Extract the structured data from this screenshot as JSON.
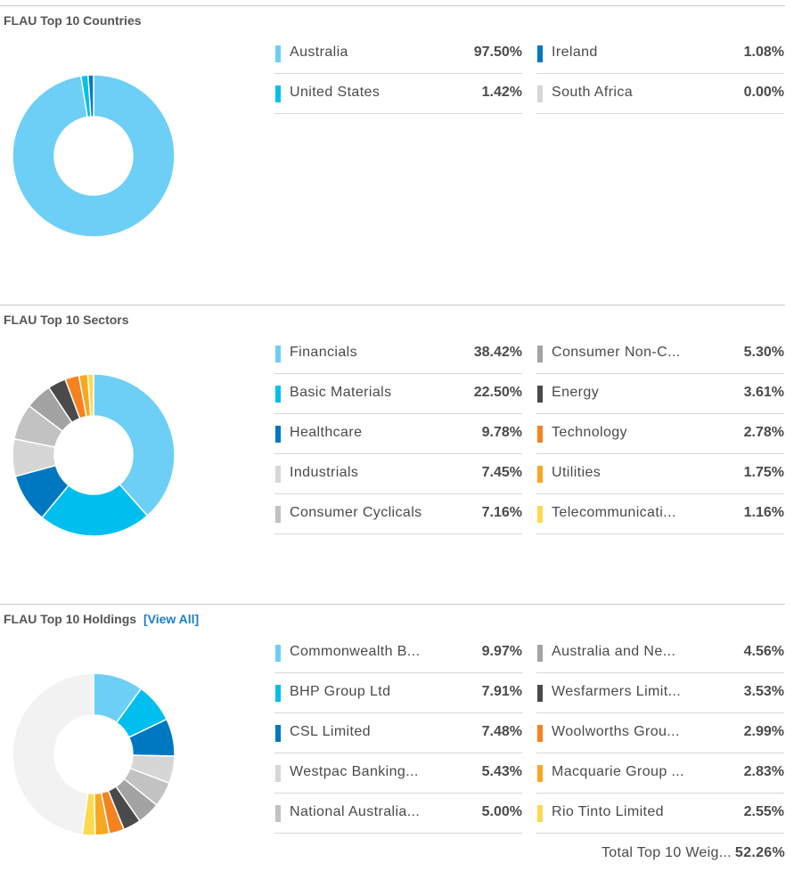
{
  "colors": {
    "c1": "#6dcff6",
    "c2": "#00bfee",
    "c3": "#0078c1",
    "c4": "#d6d6d6",
    "c5": "#c2c2c2",
    "c6": "#a3a3a3",
    "c7": "#4a4a4a",
    "c8": "#f5821f",
    "c9": "#f7a823",
    "c10": "#fdd94f",
    "rest": "#f2f2f2"
  },
  "countries": {
    "title": "FLAU Top 10 Countries",
    "items": [
      {
        "label": "Australia",
        "value": "97.50%",
        "pct": 97.5,
        "color": "#6dcff6"
      },
      {
        "label": "United States",
        "value": "1.42%",
        "pct": 1.42,
        "color": "#00bfee"
      },
      {
        "label": "Ireland",
        "value": "1.08%",
        "pct": 1.08,
        "color": "#0078c1"
      },
      {
        "label": "South Africa",
        "value": "0.00%",
        "pct": 0.0,
        "color": "#d6d6d6"
      }
    ]
  },
  "sectors": {
    "title": "FLAU Top 10 Sectors",
    "items": [
      {
        "label": "Financials",
        "value": "38.42%",
        "pct": 38.42,
        "color": "#6dcff6"
      },
      {
        "label": "Basic Materials",
        "value": "22.50%",
        "pct": 22.5,
        "color": "#00bfee"
      },
      {
        "label": "Healthcare",
        "value": "9.78%",
        "pct": 9.78,
        "color": "#0078c1"
      },
      {
        "label": "Industrials",
        "value": "7.45%",
        "pct": 7.45,
        "color": "#d6d6d6"
      },
      {
        "label": "Consumer Cyclicals",
        "value": "7.16%",
        "pct": 7.16,
        "color": "#c2c2c2"
      },
      {
        "label": "Consumer Non-C...",
        "value": "5.30%",
        "pct": 5.3,
        "color": "#a3a3a3"
      },
      {
        "label": "Energy",
        "value": "3.61%",
        "pct": 3.61,
        "color": "#4a4a4a"
      },
      {
        "label": "Technology",
        "value": "2.78%",
        "pct": 2.78,
        "color": "#f5821f"
      },
      {
        "label": "Utilities",
        "value": "1.75%",
        "pct": 1.75,
        "color": "#f7a823"
      },
      {
        "label": "Telecommunicati...",
        "value": "1.16%",
        "pct": 1.16,
        "color": "#fdd94f"
      }
    ]
  },
  "holdings": {
    "title": "FLAU Top 10 Holdings",
    "view_all": "[View All]",
    "items": [
      {
        "label": "Commonwealth B...",
        "value": "9.97%",
        "pct": 9.97,
        "color": "#6dcff6"
      },
      {
        "label": "BHP Group Ltd",
        "value": "7.91%",
        "pct": 7.91,
        "color": "#00bfee"
      },
      {
        "label": "CSL Limited",
        "value": "7.48%",
        "pct": 7.48,
        "color": "#0078c1"
      },
      {
        "label": "Westpac Banking...",
        "value": "5.43%",
        "pct": 5.43,
        "color": "#d6d6d6"
      },
      {
        "label": "National Australia...",
        "value": "5.00%",
        "pct": 5.0,
        "color": "#c2c2c2"
      },
      {
        "label": "Australia and Ne...",
        "value": "4.56%",
        "pct": 4.56,
        "color": "#a3a3a3"
      },
      {
        "label": "Wesfarmers Limit...",
        "value": "3.53%",
        "pct": 3.53,
        "color": "#4a4a4a"
      },
      {
        "label": "Woolworths Grou...",
        "value": "2.99%",
        "pct": 2.99,
        "color": "#f5821f"
      },
      {
        "label": "Macquarie Group ...",
        "value": "2.83%",
        "pct": 2.83,
        "color": "#f7a823"
      },
      {
        "label": "Rio Tinto Limited",
        "value": "2.55%",
        "pct": 2.55,
        "color": "#fdd94f"
      }
    ],
    "total_label": "Total Top 10 Weig...",
    "total_value": "52.26%"
  }
}
